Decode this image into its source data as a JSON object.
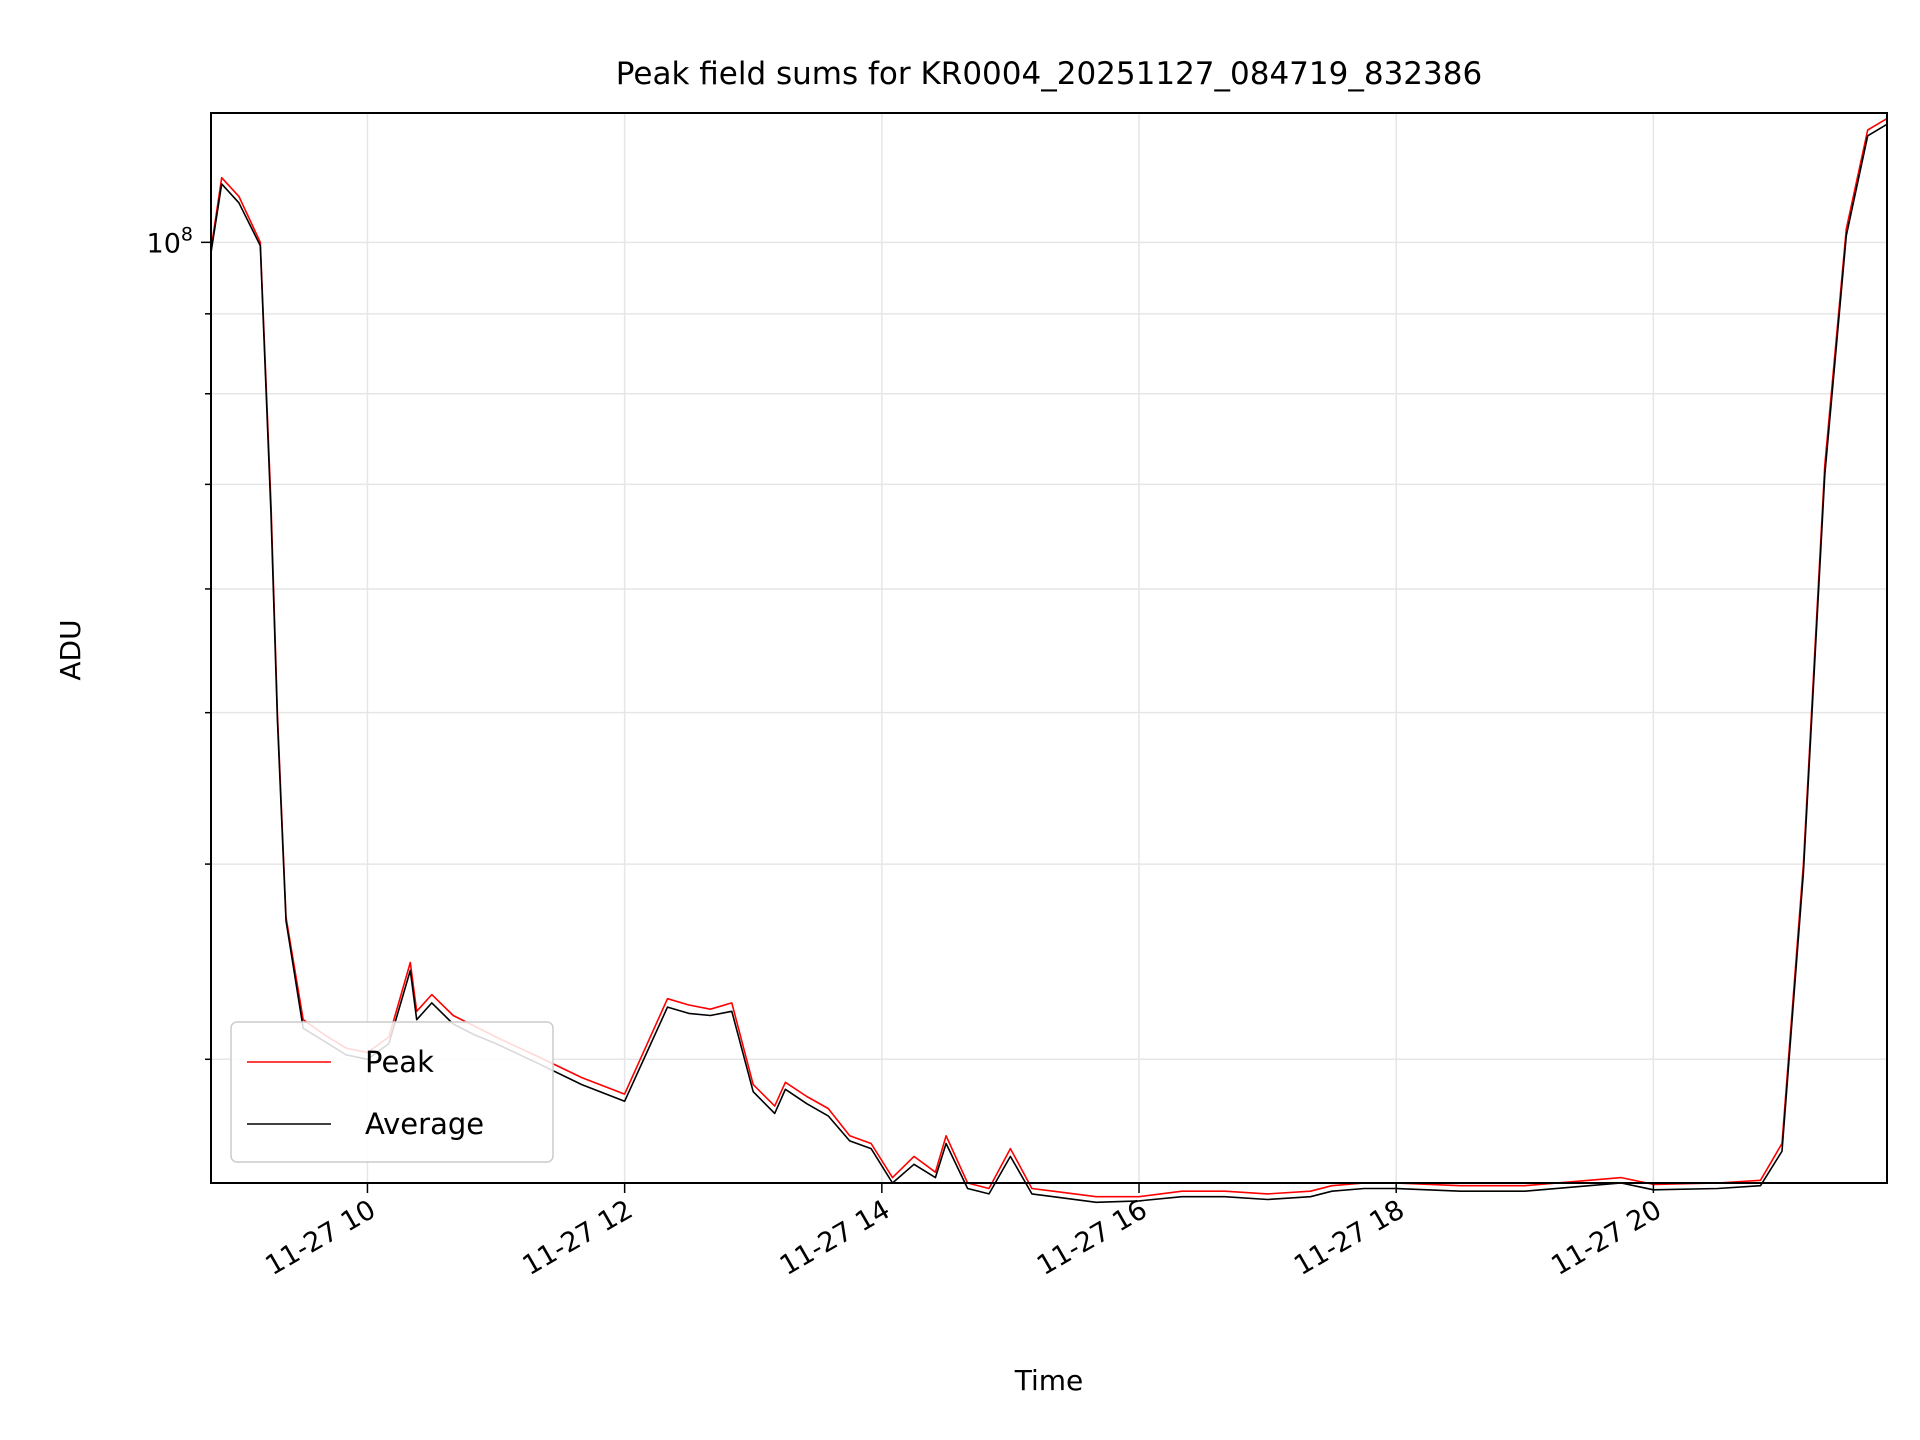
{
  "chart_data": {
    "type": "line",
    "title": "Peak field sums for KR0004_20251127_084719_832386",
    "xlabel": "Time",
    "ylabel": "ADU",
    "y_scale": "log",
    "y_tick_labels": [
      {
        "value": 100000000,
        "base": "10",
        "exponent": "8"
      }
    ],
    "x_tick_labels": [
      "11-27 10",
      "11-27 12",
      "11-27 14",
      "11-27 16",
      "11-27 18",
      "11-27 20"
    ],
    "x_tick_times": [
      "2025-11-27T10:00",
      "2025-11-27T12:00",
      "2025-11-27T14:00",
      "2025-11-27T16:00",
      "2025-11-27T18:00",
      "2025-11-27T20:00"
    ],
    "xlim": [
      "2025-11-27T08:47",
      "2025-11-27T21:49"
    ],
    "ylim": [
      25000000,
      121000000
    ],
    "grid": true,
    "legend_position": "lower left",
    "series": [
      {
        "name": "Peak",
        "color": "#ff0000",
        "x": [
          "2025-11-27T08:47",
          "2025-11-27T08:52",
          "2025-11-27T09:00",
          "2025-11-27T09:10",
          "2025-11-27T09:15",
          "2025-11-27T09:18",
          "2025-11-27T09:22",
          "2025-11-27T09:30",
          "2025-11-27T09:40",
          "2025-11-27T09:50",
          "2025-11-27T10:00",
          "2025-11-27T10:10",
          "2025-11-27T10:20",
          "2025-11-27T10:23",
          "2025-11-27T10:30",
          "2025-11-27T10:40",
          "2025-11-27T10:50",
          "2025-11-27T11:00",
          "2025-11-27T11:20",
          "2025-11-27T11:40",
          "2025-11-27T12:00",
          "2025-11-27T12:20",
          "2025-11-27T12:30",
          "2025-11-27T12:40",
          "2025-11-27T12:50",
          "2025-11-27T13:00",
          "2025-11-27T13:10",
          "2025-11-27T13:15",
          "2025-11-27T13:25",
          "2025-11-27T13:35",
          "2025-11-27T13:45",
          "2025-11-27T13:55",
          "2025-11-27T14:05",
          "2025-11-27T14:15",
          "2025-11-27T14:25",
          "2025-11-27T14:30",
          "2025-11-27T14:40",
          "2025-11-27T14:50",
          "2025-11-27T15:00",
          "2025-11-27T15:10",
          "2025-11-27T15:20",
          "2025-11-27T15:40",
          "2025-11-27T16:00",
          "2025-11-27T16:20",
          "2025-11-27T16:40",
          "2025-11-27T17:00",
          "2025-11-27T17:20",
          "2025-11-27T17:30",
          "2025-11-27T17:45",
          "2025-11-27T18:00",
          "2025-11-27T18:30",
          "2025-11-27T19:00",
          "2025-11-27T19:30",
          "2025-11-27T19:45",
          "2025-11-27T20:00",
          "2025-11-27T20:30",
          "2025-11-27T20:50",
          "2025-11-27T21:00",
          "2025-11-27T21:10",
          "2025-11-27T21:20",
          "2025-11-27T21:30",
          "2025-11-27T21:40",
          "2025-11-27T21:49"
        ],
        "y": [
          99000000,
          110000000,
          107000000,
          100000000,
          68000000,
          50000000,
          37000000,
          31800000,
          31100000,
          30500000,
          30300000,
          31000000,
          34600000,
          32200000,
          33000000,
          32000000,
          31500000,
          31000000,
          30100000,
          29200000,
          28500000,
          32800000,
          32500000,
          32300000,
          32600000,
          28900000,
          28000000,
          29000000,
          28400000,
          27900000,
          26800000,
          26500000,
          25200000,
          26000000,
          25400000,
          26800000,
          25000000,
          24800000,
          26300000,
          24800000,
          24700000,
          24500000,
          24500000,
          24700000,
          24700000,
          24600000,
          24700000,
          24900000,
          25000000,
          25000000,
          24900000,
          24900000,
          25100000,
          25200000,
          24950000,
          25000000,
          25100000,
          26500000,
          40000000,
          72000000,
          102000000,
          118000000,
          120000000
        ]
      },
      {
        "name": "Average",
        "color": "#000000",
        "x": [
          "2025-11-27T08:47",
          "2025-11-27T08:52",
          "2025-11-27T09:00",
          "2025-11-27T09:10",
          "2025-11-27T09:15",
          "2025-11-27T09:18",
          "2025-11-27T09:22",
          "2025-11-27T09:30",
          "2025-11-27T09:40",
          "2025-11-27T09:50",
          "2025-11-27T10:00",
          "2025-11-27T10:10",
          "2025-11-27T10:20",
          "2025-11-27T10:23",
          "2025-11-27T10:30",
          "2025-11-27T10:40",
          "2025-11-27T10:50",
          "2025-11-27T11:00",
          "2025-11-27T11:20",
          "2025-11-27T11:40",
          "2025-11-27T12:00",
          "2025-11-27T12:20",
          "2025-11-27T12:30",
          "2025-11-27T12:40",
          "2025-11-27T12:50",
          "2025-11-27T13:00",
          "2025-11-27T13:10",
          "2025-11-27T13:15",
          "2025-11-27T13:25",
          "2025-11-27T13:35",
          "2025-11-27T13:45",
          "2025-11-27T13:55",
          "2025-11-27T14:05",
          "2025-11-27T14:15",
          "2025-11-27T14:25",
          "2025-11-27T14:30",
          "2025-11-27T14:40",
          "2025-11-27T14:50",
          "2025-11-27T15:00",
          "2025-11-27T15:10",
          "2025-11-27T15:20",
          "2025-11-27T15:40",
          "2025-11-27T16:00",
          "2025-11-27T16:20",
          "2025-11-27T16:40",
          "2025-11-27T17:00",
          "2025-11-27T17:20",
          "2025-11-27T17:30",
          "2025-11-27T17:45",
          "2025-11-27T18:00",
          "2025-11-27T18:30",
          "2025-11-27T19:00",
          "2025-11-27T19:30",
          "2025-11-27T19:45",
          "2025-11-27T20:00",
          "2025-11-27T20:30",
          "2025-11-27T20:50",
          "2025-11-27T21:00",
          "2025-11-27T21:10",
          "2025-11-27T21:20",
          "2025-11-27T21:30",
          "2025-11-27T21:40",
          "2025-11-27T21:49"
        ],
        "y": [
          98500000,
          109000000,
          106000000,
          99500000,
          67000000,
          49500000,
          36800000,
          31400000,
          30800000,
          30200000,
          30000000,
          30700000,
          34200000,
          31800000,
          32600000,
          31600000,
          31100000,
          30700000,
          29800000,
          28900000,
          28200000,
          32400000,
          32100000,
          32000000,
          32200000,
          28600000,
          27700000,
          28700000,
          28100000,
          27600000,
          26600000,
          26300000,
          25000000,
          25700000,
          25200000,
          26500000,
          24800000,
          24600000,
          26000000,
          24600000,
          24500000,
          24300000,
          24350000,
          24500000,
          24500000,
          24400000,
          24500000,
          24700000,
          24800000,
          24800000,
          24700000,
          24700000,
          24900000,
          25000000,
          24750000,
          24800000,
          24900000,
          26200000,
          39500000,
          71000000,
          101000000,
          117000000,
          119000000
        ]
      }
    ]
  }
}
